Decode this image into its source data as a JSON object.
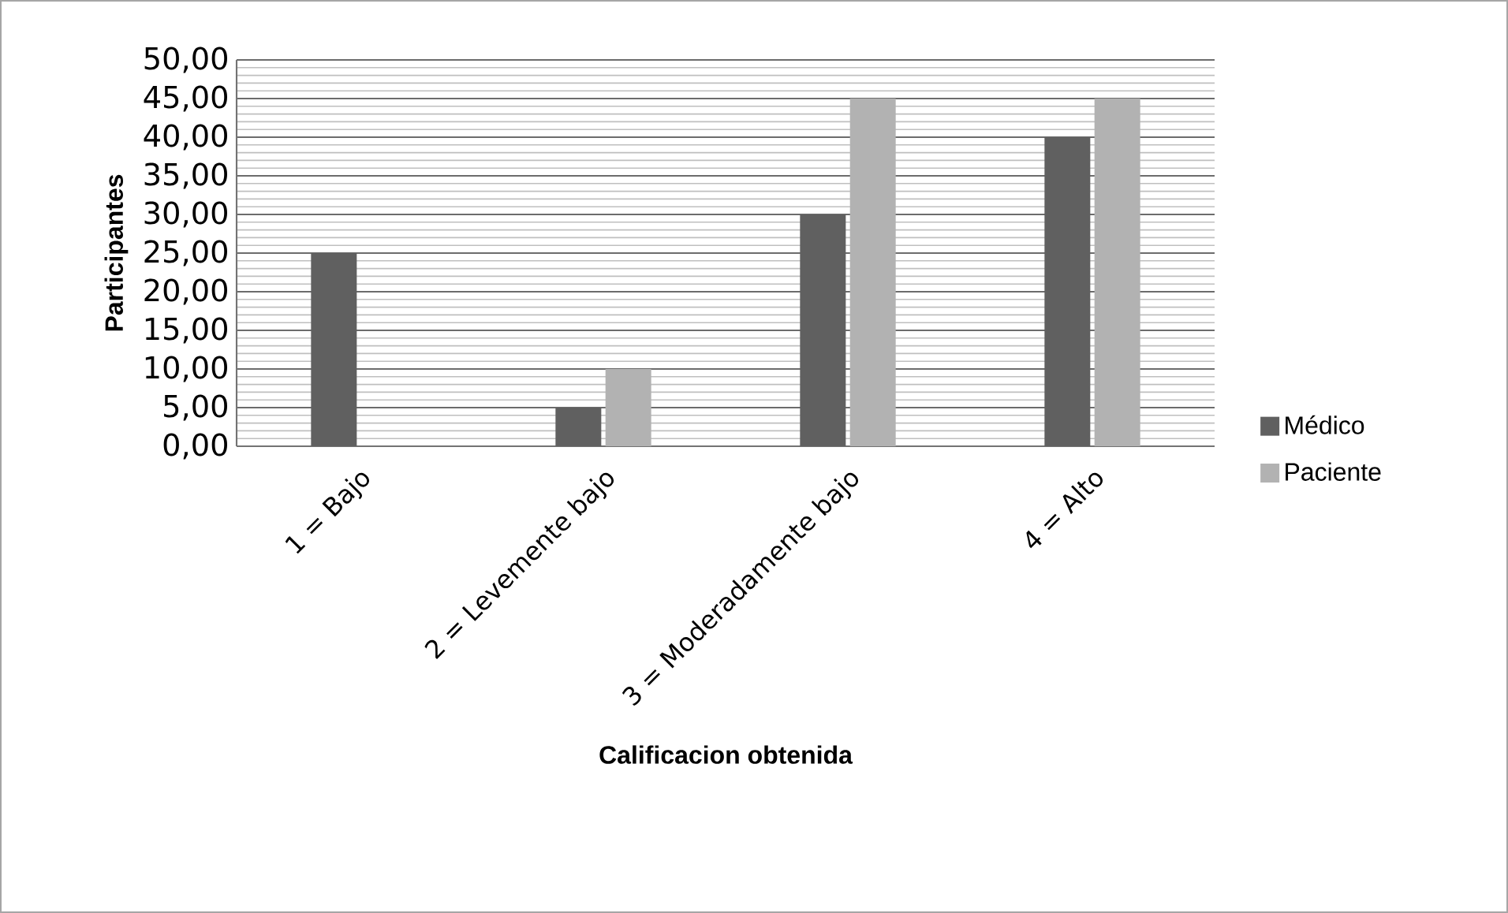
{
  "chart_data": {
    "type": "bar",
    "xlabel": "Calificacion obtenida",
    "ylabel": "Participantes",
    "categories": [
      "1 = Bajo",
      "2 = Levemente bajo",
      "3 = Moderadamente bajo",
      "4 = Alto"
    ],
    "series": [
      {
        "name": "Médico",
        "color": "#606060",
        "values": [
          25,
          5,
          30,
          40
        ]
      },
      {
        "name": "Paciente",
        "color": "#b2b2b2",
        "values": [
          0,
          10,
          45,
          45
        ]
      }
    ],
    "ylim": [
      0,
      50
    ],
    "yticks": [
      {
        "value": 0,
        "label": "0,00"
      },
      {
        "value": 5,
        "label": "5,00"
      },
      {
        "value": 10,
        "label": "10,00"
      },
      {
        "value": 15,
        "label": "15,00"
      },
      {
        "value": 20,
        "label": "20,00"
      },
      {
        "value": 25,
        "label": "25,00"
      },
      {
        "value": 30,
        "label": "30,00"
      },
      {
        "value": 35,
        "label": "35,00"
      },
      {
        "value": 40,
        "label": "40,00"
      },
      {
        "value": 45,
        "label": "45,00"
      },
      {
        "value": 50,
        "label": "50,00"
      }
    ],
    "grid": "y",
    "legend": "right"
  }
}
